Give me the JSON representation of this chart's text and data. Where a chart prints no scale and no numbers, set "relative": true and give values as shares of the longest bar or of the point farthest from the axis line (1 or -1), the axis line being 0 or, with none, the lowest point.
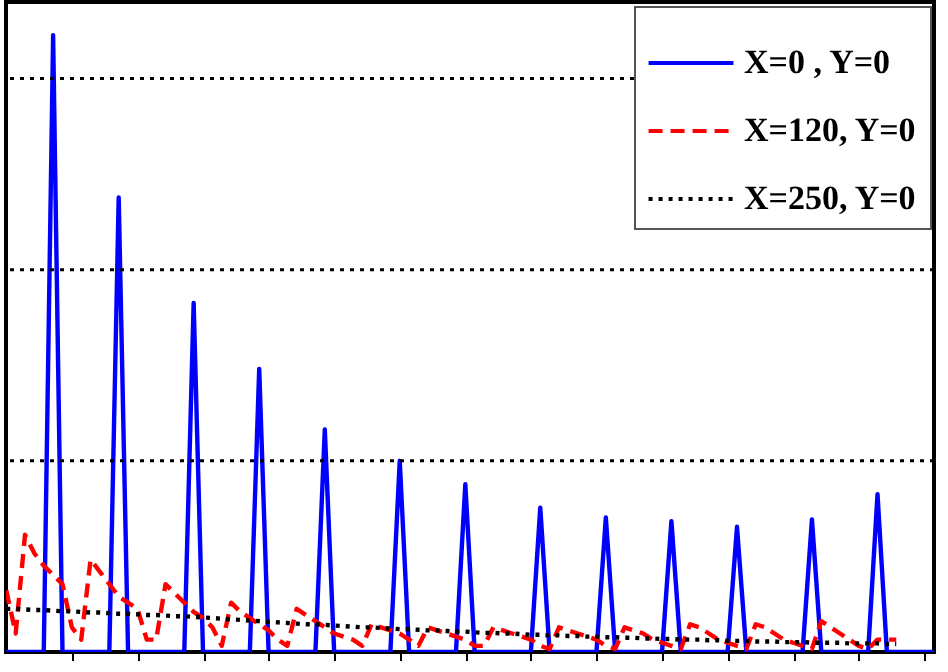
{
  "chart_data": {
    "type": "line",
    "relative": true,
    "legend": "top right",
    "ref_lines": [
      {
        "axis": "y",
        "value": 0.93,
        "color": "#000000",
        "line_style": "dotted"
      },
      {
        "axis": "y",
        "value": 0.62,
        "color": "#000000",
        "line_style": "dotted"
      },
      {
        "axis": "y",
        "value": 0.31,
        "color": "#000000",
        "line_style": "dotted"
      }
    ],
    "categories": [
      null,
      null,
      null,
      null,
      null,
      null,
      null,
      null,
      null,
      null,
      null,
      null,
      null,
      null,
      null,
      null,
      null,
      null,
      null,
      null,
      null,
      null,
      null,
      null,
      null,
      null,
      null,
      null,
      null,
      null,
      null,
      null,
      null,
      null,
      null,
      null,
      null,
      null,
      null,
      null,
      null,
      null,
      null,
      null,
      null,
      null,
      null,
      null,
      null,
      null,
      null,
      null,
      null,
      null,
      null,
      null,
      null,
      null,
      null,
      null,
      null,
      null,
      null,
      null,
      null,
      null,
      null,
      null,
      null,
      null,
      null,
      null,
      null,
      null,
      null,
      null,
      null,
      null,
      null,
      null,
      null,
      null,
      null,
      null,
      null,
      null,
      null,
      null,
      null,
      null,
      null,
      null,
      null,
      null,
      null,
      null,
      null,
      null,
      null,
      null
    ],
    "series": [
      {
        "name": "X=0    , Y=0",
        "color": "#0000ff",
        "line_style": "solid",
        "values": [
          0,
          0,
          0,
          0,
          0,
          1.0,
          0,
          0,
          0,
          0,
          0,
          0,
          0.737,
          0,
          0,
          0,
          0,
          0,
          0,
          0,
          0.566,
          0,
          0,
          0,
          0,
          0,
          0,
          0.459,
          0,
          0,
          0,
          0,
          0,
          0,
          0.361,
          0,
          0,
          0,
          0,
          0,
          0,
          0,
          0.31,
          0,
          0,
          0,
          0,
          0,
          0,
          0.272,
          0,
          0,
          0,
          0,
          0,
          0,
          0,
          0.234,
          0,
          0,
          0,
          0,
          0,
          0,
          0.218,
          0,
          0,
          0,
          0,
          0,
          0,
          0.212,
          0,
          0,
          0,
          0,
          0,
          0,
          0.203,
          0,
          0,
          0,
          0,
          0,
          0,
          0,
          0.215,
          0,
          0,
          0,
          0,
          0,
          0,
          0.256,
          0,
          0,
          0,
          0,
          0,
          0
        ]
      },
      {
        "name": "X=120, Y=0",
        "color": "#ff0000",
        "line_style": "dashed",
        "values": [
          0.1,
          0.03,
          0.19,
          0.16,
          0.14,
          0.125,
          0.11,
          0.04,
          0.02,
          0.15,
          0.13,
          0.11,
          0.09,
          0.08,
          0.07,
          0.02,
          0.02,
          0.11,
          0.095,
          0.08,
          0.065,
          0.055,
          0.04,
          0.01,
          0.08,
          0.065,
          0.055,
          0.045,
          0.035,
          0.02,
          0.01,
          0.07,
          0.06,
          0.05,
          0.04,
          0.03,
          0.025,
          0.02,
          0.01,
          0.045,
          0.04,
          0.035,
          0.03,
          0.02,
          0.01,
          0.04,
          0.035,
          0.03,
          0.025,
          0.02,
          0.01,
          0.01,
          0.04,
          0.035,
          0.03,
          0.025,
          0.02,
          0.01,
          0.005,
          0.04,
          0.035,
          0.03,
          0.025,
          0.02,
          0.01,
          0.005,
          0.04,
          0.035,
          0.03,
          0.02,
          0.015,
          0.01,
          0.005,
          0.045,
          0.04,
          0.03,
          0.02,
          0.015,
          0.01,
          0.005,
          0.045,
          0.04,
          0.03,
          0.02,
          0.015,
          0.01,
          0.005,
          0.05,
          0.04,
          0.03,
          0.02,
          0.01,
          0.005,
          0.02,
          0.02,
          0.02,
          null,
          null,
          null,
          null
        ]
      },
      {
        "name": "X=250, Y=0",
        "color": "#000000",
        "line_style": "dotted",
        "values": [
          0.07,
          0.07,
          0.069,
          0.068,
          0.068,
          0.067,
          0.066,
          0.066,
          0.065,
          0.064,
          0.064,
          0.063,
          0.062,
          0.062,
          0.061,
          0.06,
          0.06,
          0.059,
          0.058,
          0.058,
          0.057,
          0.056,
          0.055,
          0.054,
          0.053,
          0.052,
          0.051,
          0.05,
          0.049,
          0.048,
          0.047,
          0.046,
          0.045,
          0.045,
          0.044,
          0.043,
          0.042,
          0.041,
          0.04,
          0.04,
          0.039,
          0.038,
          0.037,
          0.037,
          0.036,
          0.035,
          0.035,
          0.034,
          0.033,
          0.033,
          0.032,
          0.031,
          0.031,
          0.03,
          0.03,
          0.029,
          0.028,
          0.028,
          0.027,
          0.027,
          0.026,
          0.026,
          0.025,
          0.025,
          0.024,
          0.024,
          0.023,
          0.023,
          0.022,
          0.022,
          0.021,
          0.021,
          0.02,
          0.02,
          0.02,
          0.019,
          0.019,
          0.018,
          0.018,
          0.018,
          0.017,
          0.017,
          0.017,
          0.016,
          0.016,
          0.016,
          0.015,
          0.015,
          0.015,
          0.015,
          0.014,
          0.014,
          0.014,
          0.014,
          0.013,
          0.013,
          null,
          null,
          null,
          null
        ]
      }
    ]
  }
}
